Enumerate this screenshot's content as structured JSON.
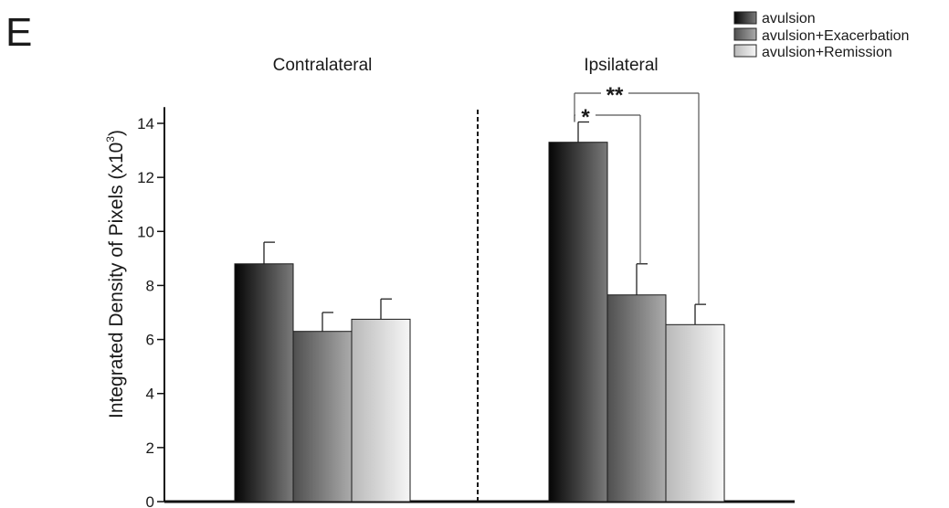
{
  "panel_label": "E",
  "chart_data": {
    "type": "bar",
    "groups": [
      "Contralateral",
      "Ipsilateral"
    ],
    "series": [
      {
        "name": "avulsion",
        "values": [
          8.8,
          13.3
        ],
        "errors": [
          0.8,
          0.75
        ]
      },
      {
        "name": "avulsion+Exacerbation",
        "values": [
          6.3,
          7.65
        ],
        "errors": [
          0.7,
          1.15
        ]
      },
      {
        "name": "avulsion+Remission",
        "values": [
          6.75,
          6.55
        ],
        "errors": [
          0.75,
          0.75
        ]
      }
    ],
    "ylabel": "Integrated Density of Pixels (x10",
    "ylabel_superscript": "3",
    "ylabel_close": ")",
    "ylim": [
      0,
      14.6
    ],
    "yticks": [
      0,
      2,
      4,
      6,
      8,
      10,
      12,
      14
    ],
    "legend_position": "top-right",
    "group_divider": "dashed",
    "colors": {
      "avulsion": [
        "#050505",
        "#7a7a7a"
      ],
      "avulsion+Exacerbation": [
        "#4f4f4f",
        "#ababab"
      ],
      "avulsion+Remission": [
        "#b9b9b9",
        "#f6f6f6"
      ]
    },
    "significance": [
      {
        "group": "Ipsilateral",
        "from": "avulsion",
        "to": "avulsion+Exacerbation",
        "label": "*"
      },
      {
        "group": "Ipsilateral",
        "from": "avulsion",
        "to": "avulsion+Remission",
        "label": "**"
      }
    ]
  }
}
